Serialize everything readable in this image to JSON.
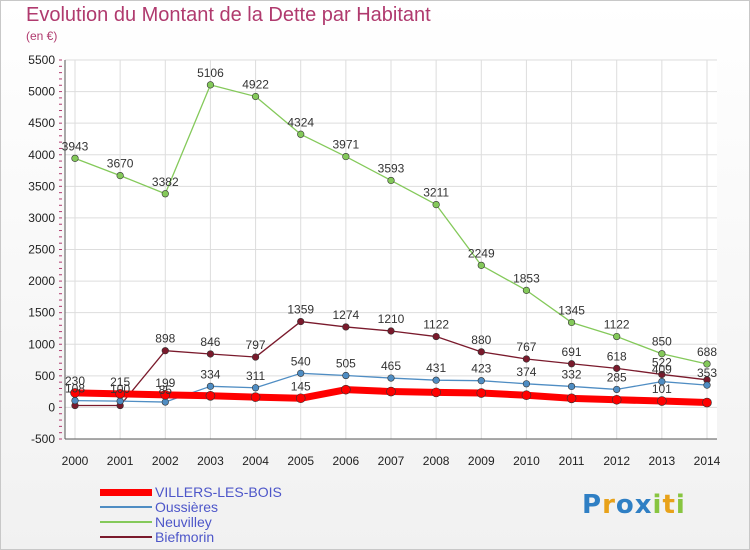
{
  "title": "Evolution du Montant de la Dette par Habitant",
  "unit_label": "(en €)",
  "logo_text": "Proxiti",
  "chart_data": {
    "type": "line",
    "title": "Evolution du Montant de la Dette par Habitant",
    "xlabel": "",
    "ylabel": "(en €)",
    "x": [
      2000,
      2001,
      2002,
      2003,
      2004,
      2005,
      2006,
      2007,
      2008,
      2009,
      2010,
      2011,
      2012,
      2013,
      2014
    ],
    "ylim": [
      -500,
      5500
    ],
    "yticks": [
      -500,
      0,
      500,
      1000,
      1500,
      2000,
      2500,
      3000,
      3500,
      4000,
      4500,
      5000,
      5500
    ],
    "grid": true,
    "legend_position": "bottom-left",
    "series": [
      {
        "name": "VILLERS-LES-BOIS",
        "color": "#ff0000",
        "values": [
          230,
          215,
          199,
          184,
          163,
          145,
          281,
          251,
          238,
          228,
          193,
          144,
          121,
          101,
          77
        ],
        "labels": [
          "230",
          "215",
          "199",
          "",
          "",
          "145",
          "",
          "",
          "",
          "",
          "",
          "",
          "",
          "101",
          ""
        ]
      },
      {
        "name": "Oussières",
        "color": "#4f8dc3",
        "values": [
          108,
          100,
          85,
          334,
          311,
          540,
          505,
          465,
          431,
          423,
          374,
          332,
          285,
          409,
          353
        ],
        "labels": [
          "108",
          "100",
          "85",
          "334",
          "311",
          "540",
          "505",
          "465",
          "431",
          "423",
          "374",
          "332",
          "285",
          "409",
          "353"
        ]
      },
      {
        "name": "Neuvilley",
        "color": "#84c95a",
        "values": [
          3943,
          3670,
          3382,
          5106,
          4922,
          4324,
          3971,
          3593,
          3211,
          2249,
          1853,
          1345,
          1122,
          850,
          688
        ],
        "labels": [
          "3943",
          "3670",
          "3382",
          "5106",
          "4922",
          "4324",
          "3971",
          "3593",
          "3211",
          "2249",
          "1853",
          "1345",
          "1122",
          "850",
          "688"
        ]
      },
      {
        "name": "Biefmorin",
        "color": "#7a1a2c",
        "values": [
          30,
          30,
          898,
          846,
          797,
          1359,
          1274,
          1210,
          1122,
          880,
          767,
          691,
          618,
          522,
          437
        ],
        "labels": [
          "",
          "",
          "898",
          "846",
          "797",
          "1359",
          "1274",
          "1210",
          "1122",
          "880",
          "767",
          "691",
          "618",
          "522",
          ""
        ]
      }
    ]
  }
}
